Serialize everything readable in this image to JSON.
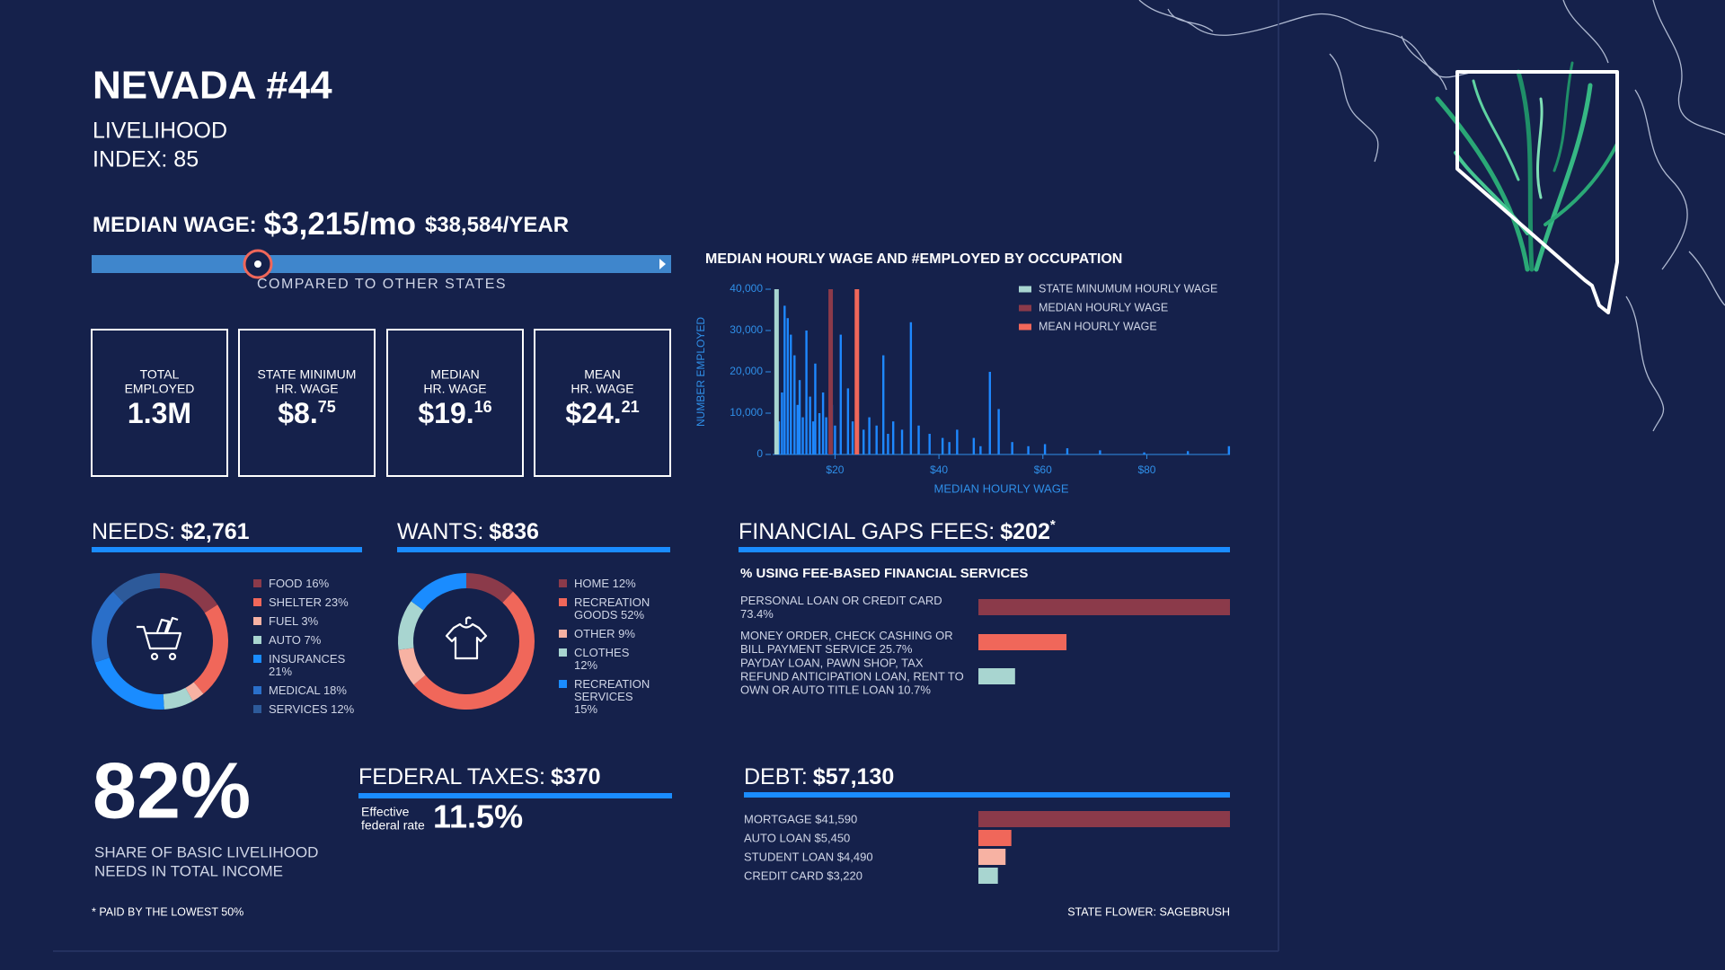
{
  "header": {
    "title": "NEVADA #44",
    "subtitle_lines": [
      "LIVELIHOOD",
      "INDEX: 85"
    ]
  },
  "median_wage": {
    "label": "MEDIAN WAGE:",
    "monthly": "$3,215/mo",
    "yearly": "$38,584/YEAR",
    "caption": "COMPARED TO OTHER STATES"
  },
  "stats": [
    {
      "label_lines": [
        "TOTAL",
        "EMPLOYED"
      ],
      "value": "1.3M"
    },
    {
      "label_lines": [
        "STATE MINIMUM",
        "HR. WAGE"
      ],
      "value": "$8.",
      "sup": "75"
    },
    {
      "label_lines": [
        "MEDIAN",
        "HR. WAGE"
      ],
      "value": "$19.",
      "sup": "16"
    },
    {
      "label_lines": [
        "MEAN",
        "HR. WAGE"
      ],
      "value": "$24.",
      "sup": "21"
    }
  ],
  "chart_data": [
    {
      "type": "bar",
      "title": "MEDIAN HOURLY WAGE AND #EMPLOYED BY OCCUPATION",
      "x_label": "MEDIAN HOURLY WAGE",
      "y_label": "NUMBER EMPLOYED",
      "color": "#1e88ff",
      "x": [
        9.2,
        9.8,
        10.3,
        10.9,
        11.5,
        12.2,
        12.8,
        13.2,
        13.8,
        14.5,
        15.2,
        15.8,
        16.2,
        17,
        17.7,
        18.3,
        19.4,
        20,
        21.1,
        22.5,
        23.4,
        24.4,
        25.5,
        26.6,
        28,
        29.3,
        30.2,
        31.2,
        32.9,
        34.6,
        36.1,
        38.2,
        40.7,
        42,
        43.5,
        46.7,
        48,
        49.8,
        51.5,
        54.1,
        57.2,
        60.4,
        64.7,
        71,
        79.5,
        87.9,
        95.8
      ],
      "values": [
        8000,
        15000,
        36000,
        33000,
        29000,
        24000,
        12000,
        18000,
        9000,
        30000,
        14000,
        8000,
        22000,
        10000,
        15000,
        9000,
        12000,
        7000,
        29000,
        16000,
        8000,
        10000,
        6000,
        9000,
        7000,
        24000,
        5000,
        8000,
        6000,
        32000,
        7000,
        5000,
        4000,
        3000,
        6000,
        4000,
        2000,
        20000,
        11000,
        3000,
        2000,
        2500,
        1500,
        1000,
        500,
        800,
        2000
      ],
      "reference_lines": [
        {
          "name": "STATE MINUMUM HOURLY WAGE",
          "color": "#a8d5d0",
          "value": 8.75
        },
        {
          "name": "MEDIAN HOURLY WAGE",
          "color": "#8b3a4a",
          "value": 19.16
        },
        {
          "name": "MEAN HOURLY WAGE",
          "color": "#f0675a",
          "value": 24.21
        }
      ],
      "xlim": [
        8,
        96
      ],
      "ylim": [
        0,
        40000
      ],
      "xticks": [
        {
          "value": 20,
          "label": "$20"
        },
        {
          "value": 40,
          "label": "$40"
        },
        {
          "value": 60,
          "label": "$60"
        },
        {
          "value": 80,
          "label": "$80"
        }
      ],
      "yticks": [
        0,
        {
          "value": 10000,
          "label": "10,000"
        },
        {
          "value": 20000,
          "label": "20,000"
        },
        {
          "value": 30000,
          "label": "30,000"
        },
        {
          "value": 40000,
          "label": "40,000"
        }
      ],
      "legend": "top-right"
    },
    {
      "type": "donut",
      "title": "NEEDS:",
      "title_value": "$2,761",
      "categories": [
        "FOOD",
        "SHELTER",
        "FUEL",
        "AUTO",
        "INSURANCES",
        "MEDICAL",
        "SERVICES"
      ],
      "values": [
        16,
        23,
        3,
        7,
        21,
        18,
        12
      ],
      "value_labels": [
        "16%",
        "23%",
        "3%",
        "7%",
        "21%",
        "18%",
        "12%"
      ],
      "colors": [
        "#8b3a4a",
        "#f0675a",
        "#f7b2a3",
        "#a8d5d0",
        "#1a8cff",
        "#2a6fc9",
        "#2d5a9a"
      ]
    },
    {
      "type": "donut",
      "title": "WANTS:",
      "title_value": "$836",
      "categories": [
        "HOME",
        "RECREATION GOODS",
        "OTHER",
        "CLOTHES",
        "RECREATION SERVICES"
      ],
      "values": [
        12,
        52,
        9,
        12,
        15
      ],
      "value_labels": [
        "12%",
        "52%",
        "9%",
        "12%",
        "15%"
      ],
      "colors": [
        "#8b3a4a",
        "#f0675a",
        "#f7b2a3",
        "#a8d5d0",
        "#1a8cff"
      ]
    },
    {
      "type": "hbar",
      "title": "FINANCIAL GAPS FEES:",
      "title_value": "$202",
      "title_note": "*",
      "subtitle": "% USING FEE-BASED FINANCIAL SERVICES",
      "categories": [
        "PERSONAL LOAN OR CREDIT CARD",
        "MONEY ORDER, CHECK CASHING OR BILL PAYMENT SERVICE",
        "PAYDAY LOAN, PAWN SHOP, TAX REFUND ANTICIPATION LOAN, RENT TO OWN OR AUTO TITLE LOAN"
      ],
      "values": [
        73.4,
        25.7,
        10.7
      ],
      "value_labels": [
        "73.4%",
        "25.7%",
        "10.7%"
      ],
      "colors": [
        "#8b3a4a",
        "#f0675a",
        "#a8d5d0"
      ]
    },
    {
      "type": "hbar",
      "title": "DEBT:",
      "title_value": "$57,130",
      "categories": [
        "MORTGAGE",
        "AUTO LOAN",
        "STUDENT LOAN",
        "CREDIT CARD"
      ],
      "values": [
        41590,
        5450,
        4490,
        3220
      ],
      "value_labels": [
        "$41,590",
        "$5,450",
        "$4,490",
        "$3,220"
      ],
      "colors": [
        "#8b3a4a",
        "#f0675a",
        "#f7b2a3",
        "#a8d5d0"
      ]
    }
  ],
  "federal_taxes": {
    "label": "FEDERAL TAXES:",
    "amount": "$370",
    "rate_label_lines": [
      "Effective",
      "federal rate"
    ],
    "rate": "11.5%"
  },
  "share": {
    "value": "82%",
    "caption_lines": [
      "SHARE OF BASIC LIVELIHOOD",
      "NEEDS IN TOTAL INCOME"
    ]
  },
  "footnote": "* PAID BY THE LOWEST 50%",
  "state_flower": "STATE FLOWER: SAGEBRUSH"
}
